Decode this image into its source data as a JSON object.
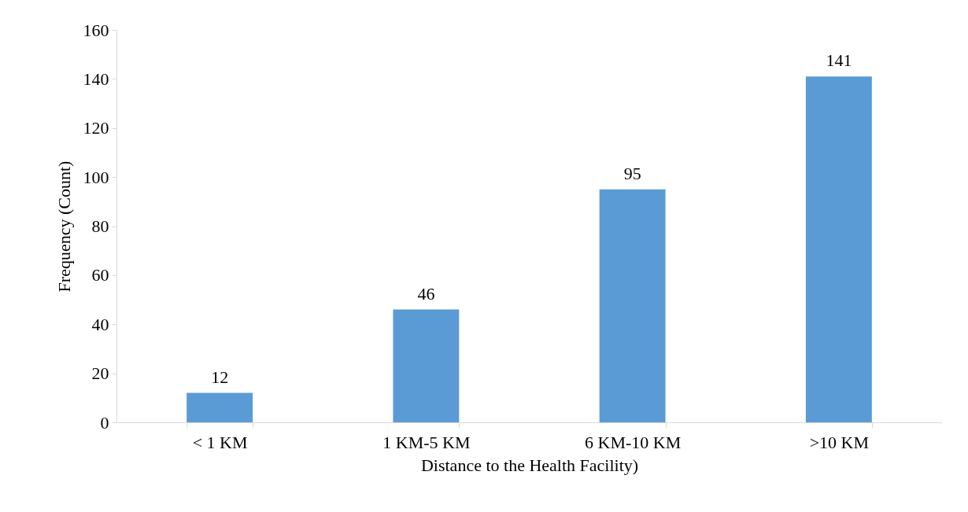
{
  "chart_data": {
    "type": "bar",
    "xlabel": "Distance to the Health Facility)",
    "ylabel": "Frequency (Count)",
    "categories": [
      "< 1 KM",
      "1 KM-5 KM",
      "6 KM-10 KM",
      ">10 KM"
    ],
    "values": [
      12,
      46,
      95,
      141
    ],
    "color": "#5b9bd5",
    "ylim": [
      0,
      160
    ],
    "yticks": [
      0,
      20,
      40,
      60,
      80,
      100,
      120,
      140,
      160
    ],
    "grid": false,
    "data_labels": true
  }
}
